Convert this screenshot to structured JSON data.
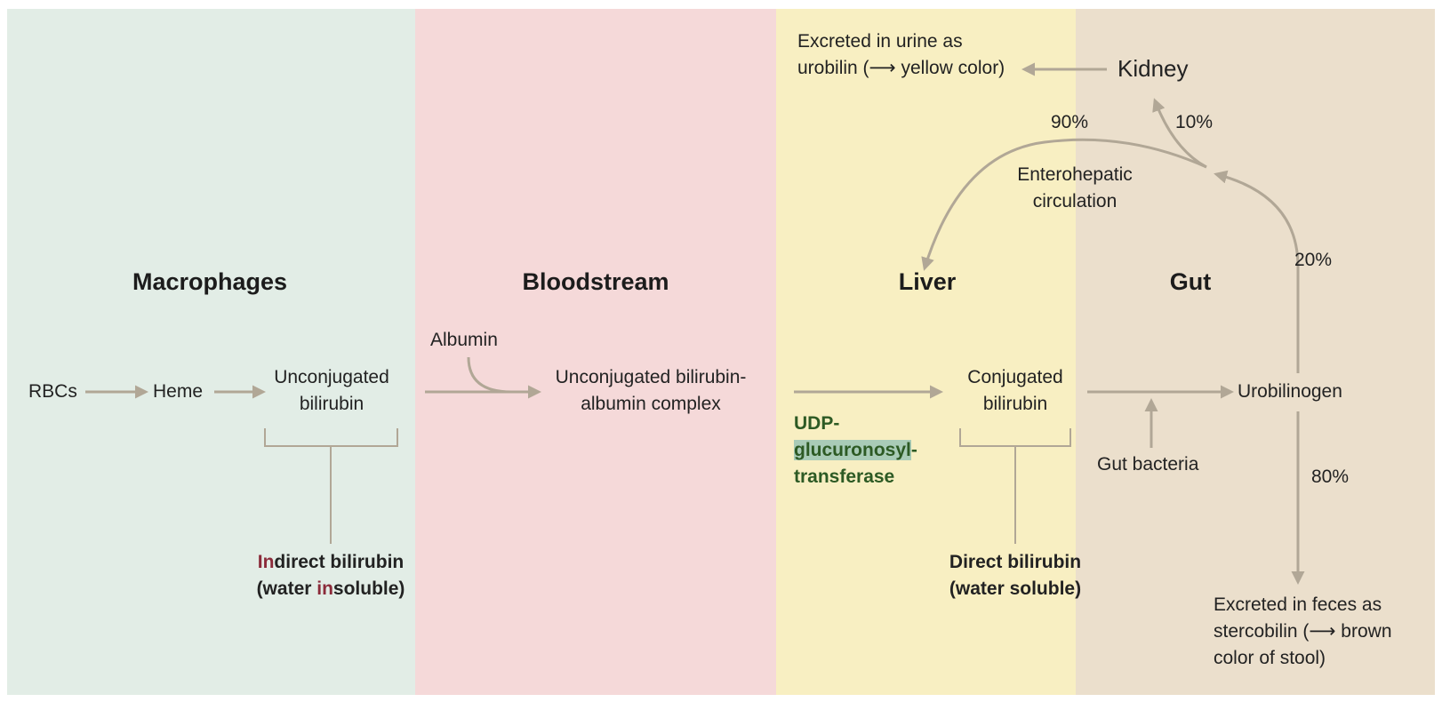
{
  "panels": {
    "macrophages": "Macrophages",
    "bloodstream": "Bloodstream",
    "liver": "Liver",
    "gut": "Gut"
  },
  "nodes": {
    "rbcs": "RBCs",
    "heme": "Heme",
    "unconj_1": "Unconjugated",
    "unconj_2": "bilirubin",
    "albumin": "Albumin",
    "complex_1": "Unconjugated bilirubin-",
    "complex_2": "albumin complex",
    "conj_1": "Conjugated",
    "conj_2": "bilirubin",
    "urobilinogen": "Urobilinogen",
    "kidney": "Kidney",
    "gut_bacteria": "Gut bacteria",
    "enzyme_1": "UDP-",
    "enzyme_2": "glucuronosyl",
    "enzyme_2_dash": "-",
    "enzyme_3": "transferase",
    "enterohepatic_1": "Enterohepatic",
    "enterohepatic_2": "circulation"
  },
  "labels": {
    "indirect_in": "In",
    "indirect_rest": "direct bilirubin",
    "water_open": "(water ",
    "water_in": "in",
    "water_rest": "soluble)",
    "direct_1": "Direct bilirubin",
    "direct_2": "(water soluble)",
    "urine_1": "Excreted in urine as",
    "urine_2": "urobilin (⟶ yellow color)",
    "feces_1": "Excreted in feces as",
    "feces_2": "stercobilin (⟶ brown",
    "feces_3": "color of stool)"
  },
  "percentages": {
    "p90": "90%",
    "p10": "10%",
    "p20": "20%",
    "p80": "80%"
  },
  "colors": {
    "arrow": "#b1a796",
    "macrophages_bg": "#e2ede6",
    "bloodstream_bg": "#f5d9d9",
    "liver_bg": "#f8efc2",
    "gut_bg": "#ebdfcc",
    "indirect_accent": "#8b2b3a",
    "enzyme_text": "#2d5a24",
    "enzyme_highlight": "#a9cbb7"
  }
}
